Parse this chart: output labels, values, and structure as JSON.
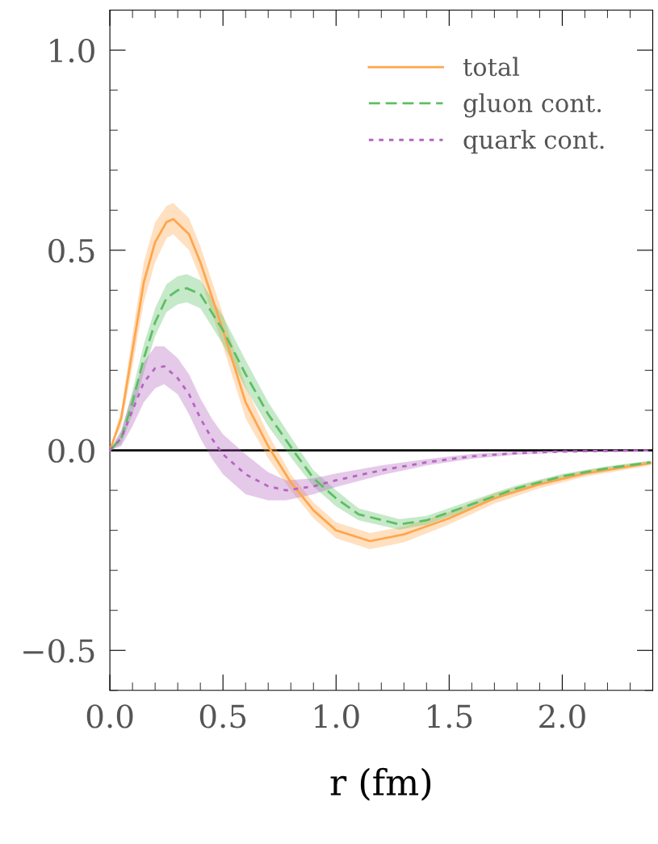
{
  "chart_data": {
    "type": "line",
    "xlabel": "r (fm)",
    "xlim": [
      0,
      2.4
    ],
    "ylim": [
      -0.6,
      1.1
    ],
    "xticks": [
      {
        "value": 0,
        "label": "0.0"
      },
      0.5,
      {
        "value": 1,
        "label": "1.0"
      },
      1.5,
      {
        "value": 2,
        "label": "2.0"
      }
    ],
    "yticks": [
      {
        "value": -0.5,
        "label": "−0.5"
      },
      {
        "value": 0,
        "label": "0.0"
      },
      0.5,
      {
        "value": 1,
        "label": "1.0"
      }
    ],
    "grid": false,
    "legend": "top right",
    "marker": "none",
    "ref_lines": [
      {
        "axis": "y",
        "value": 0,
        "color": "#000000",
        "line_style": "solid"
      }
    ],
    "series": [
      {
        "name": "total",
        "color": "#ffa64d",
        "line_style": "solid",
        "x": [
          0,
          0.05,
          0.1,
          0.15,
          0.2,
          0.25,
          0.28,
          0.35,
          0.4,
          0.5,
          0.6,
          0.7,
          0.8,
          0.9,
          1.0,
          1.15,
          1.3,
          1.5,
          1.7,
          1.9,
          2.1,
          2.39
        ],
        "values": [
          0,
          0.08,
          0.25,
          0.42,
          0.52,
          0.57,
          0.578,
          0.54,
          0.47,
          0.3,
          0.12,
          0.01,
          -0.08,
          -0.15,
          -0.2,
          -0.227,
          -0.21,
          -0.17,
          -0.12,
          -0.085,
          -0.058,
          -0.032
        ],
        "lower": [
          0,
          0.06,
          0.21,
          0.37,
          0.47,
          0.53,
          0.54,
          0.5,
          0.43,
          0.26,
          0.08,
          -0.02,
          -0.1,
          -0.17,
          -0.22,
          -0.247,
          -0.23,
          -0.185,
          -0.133,
          -0.095,
          -0.066,
          -0.038
        ],
        "upper": [
          0,
          0.1,
          0.29,
          0.47,
          0.57,
          0.61,
          0.618,
          0.58,
          0.51,
          0.34,
          0.16,
          0.04,
          -0.06,
          -0.13,
          -0.18,
          -0.207,
          -0.19,
          -0.155,
          -0.107,
          -0.075,
          -0.05,
          -0.026
        ]
      },
      {
        "name": "gluon cont.",
        "color": "#5cbf64",
        "line_style": "dashed",
        "x": [
          0,
          0.05,
          0.1,
          0.15,
          0.2,
          0.25,
          0.3,
          0.34,
          0.4,
          0.5,
          0.6,
          0.7,
          0.81,
          0.9,
          1.0,
          1.1,
          1.28,
          1.4,
          1.6,
          1.8,
          2.0,
          2.2,
          2.39
        ],
        "values": [
          0,
          0.03,
          0.12,
          0.23,
          0.32,
          0.38,
          0.4,
          0.405,
          0.39,
          0.3,
          0.19,
          0.09,
          0,
          -0.07,
          -0.12,
          -0.16,
          -0.185,
          -0.175,
          -0.135,
          -0.095,
          -0.065,
          -0.045,
          -0.03
        ],
        "lower": [
          0,
          0.015,
          0.09,
          0.195,
          0.285,
          0.345,
          0.365,
          0.37,
          0.355,
          0.265,
          0.155,
          0.06,
          -0.025,
          -0.09,
          -0.14,
          -0.175,
          -0.198,
          -0.186,
          -0.145,
          -0.103,
          -0.071,
          -0.05,
          -0.034
        ],
        "upper": [
          0,
          0.045,
          0.15,
          0.265,
          0.355,
          0.415,
          0.435,
          0.44,
          0.425,
          0.335,
          0.225,
          0.12,
          0.025,
          -0.05,
          -0.1,
          -0.145,
          -0.172,
          -0.164,
          -0.125,
          -0.087,
          -0.059,
          -0.04,
          -0.026
        ]
      },
      {
        "name": "quark cont.",
        "color": "#b565c0",
        "line_style": "dotted",
        "x": [
          0,
          0.05,
          0.1,
          0.15,
          0.2,
          0.24,
          0.3,
          0.35,
          0.4,
          0.45,
          0.5,
          0.6,
          0.7,
          0.78,
          0.9,
          1.0,
          1.2,
          1.4,
          1.6,
          1.8,
          2.0,
          2.39
        ],
        "values": [
          0,
          0.03,
          0.1,
          0.17,
          0.205,
          0.21,
          0.18,
          0.14,
          0.08,
          0.03,
          -0.01,
          -0.06,
          -0.09,
          -0.1,
          -0.09,
          -0.075,
          -0.05,
          -0.03,
          -0.015,
          -0.007,
          -0.003,
          0
        ],
        "lower": [
          0,
          0.01,
          0.06,
          0.12,
          0.155,
          0.165,
          0.14,
          0.09,
          0.03,
          -0.02,
          -0.06,
          -0.11,
          -0.125,
          -0.125,
          -0.11,
          -0.092,
          -0.062,
          -0.038,
          -0.021,
          -0.011,
          -0.006,
          -0.002
        ],
        "upper": [
          0,
          0.05,
          0.14,
          0.22,
          0.26,
          0.26,
          0.23,
          0.19,
          0.13,
          0.08,
          0.04,
          -0.01,
          -0.055,
          -0.075,
          -0.07,
          -0.058,
          -0.038,
          -0.022,
          -0.009,
          -0.003,
          0,
          0.002
        ]
      }
    ]
  }
}
